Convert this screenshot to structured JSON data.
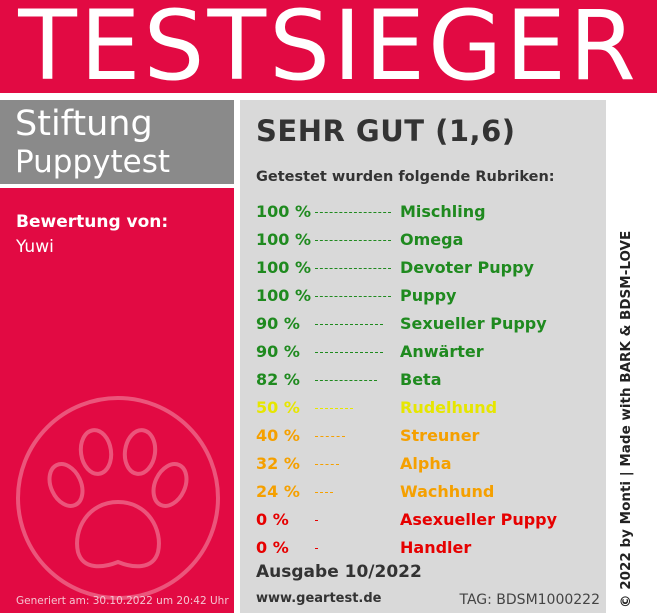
{
  "banner": {
    "title": "TESTSIEGER",
    "color": "#e20a43"
  },
  "brand": {
    "line1": "Stiftung",
    "line2": "Puppytest"
  },
  "rating": {
    "label": "Bewertung von:",
    "name": "Yuwi"
  },
  "generated": "Generiert am: 30.10.2022 um 20:42 Uhr",
  "grade": "SEHR GUT (1,6)",
  "rubrics_intro": "Getestet wurden folgende Rubriken:",
  "rubrics": [
    {
      "percent": "100 %",
      "name": "Mischling",
      "value": 100,
      "color": "#1f8a1f"
    },
    {
      "percent": "100 %",
      "name": "Omega",
      "value": 100,
      "color": "#1f8a1f"
    },
    {
      "percent": "100 %",
      "name": "Devoter Puppy",
      "value": 100,
      "color": "#1f8a1f"
    },
    {
      "percent": "100 %",
      "name": "Puppy",
      "value": 100,
      "color": "#1f8a1f"
    },
    {
      "percent": "90 %",
      "name": "Sexueller Puppy",
      "value": 90,
      "color": "#1f8a1f"
    },
    {
      "percent": "90 %",
      "name": "Anwärter",
      "value": 90,
      "color": "#1f8a1f"
    },
    {
      "percent": "82 %",
      "name": "Beta",
      "value": 82,
      "color": "#1f8a1f"
    },
    {
      "percent": "50 %",
      "name": "Rudelhund",
      "value": 50,
      "color": "#e6e600"
    },
    {
      "percent": "40 %",
      "name": "Streuner",
      "value": 40,
      "color": "#f5a000"
    },
    {
      "percent": "32 %",
      "name": "Alpha",
      "value": 32,
      "color": "#f5a000"
    },
    {
      "percent": "24 %",
      "name": "Wachhund",
      "value": 24,
      "color": "#f5a000"
    },
    {
      "percent": "0 %",
      "name": "Asexueller Puppy",
      "value": 0,
      "color": "#e60000"
    },
    {
      "percent": "0 %",
      "name": "Handler",
      "value": 0,
      "color": "#e60000"
    }
  ],
  "issue": "Ausgabe 10/2022",
  "website": "www.geartest.de",
  "tag": "TAG: BDSM1000222",
  "credit": "© 2022 by Monti | Made with BARK & BDSM-LOVE",
  "icons": {
    "paw": "paw-icon"
  }
}
